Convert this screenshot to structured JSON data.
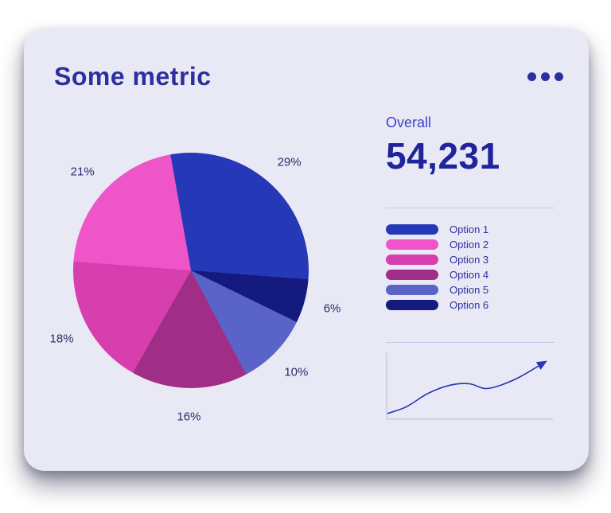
{
  "card": {
    "title": "Some metric",
    "menu_icon": "ellipsis-icon"
  },
  "overall": {
    "label": "Overall",
    "value": "54,231"
  },
  "colors": {
    "card_bg": "#e9e9f6",
    "title": "#2c2f9e",
    "overall_label": "#3c41c8",
    "overall_value": "#20249a",
    "pie_label": "#272b6b",
    "legend_label": "#2c2f9e",
    "divider": "#c3c7e6",
    "spark_axis": "#b8bcdc",
    "spark_line": "#2438b8"
  },
  "chart_data": [
    {
      "type": "pie",
      "title": "Some metric",
      "start_angle_deg": -10,
      "direction": "clockwise",
      "slices": [
        {
          "label": "Option 1",
          "value": 29,
          "pct_label": "29%",
          "color": "#2438b8"
        },
        {
          "label": "Option 6",
          "value": 6,
          "pct_label": "6%",
          "color": "#141a7e"
        },
        {
          "label": "Option 5",
          "value": 10,
          "pct_label": "10%",
          "color": "#5a63c8"
        },
        {
          "label": "Option 4",
          "value": 16,
          "pct_label": "16%",
          "color": "#a02e86"
        },
        {
          "label": "Option 3",
          "value": 18,
          "pct_label": "18%",
          "color": "#d83fae"
        },
        {
          "label": "Option 2",
          "value": 21,
          "pct_label": "21%",
          "color": "#ee55c8"
        }
      ],
      "legend": [
        {
          "label": "Option 1",
          "color": "#2438b8"
        },
        {
          "label": "Option 2",
          "color": "#ee55c8"
        },
        {
          "label": "Option 3",
          "color": "#d83fae"
        },
        {
          "label": "Option 4",
          "color": "#a02e86"
        },
        {
          "label": "Option 5",
          "color": "#5a63c8"
        },
        {
          "label": "Option 6",
          "color": "#141a7e"
        }
      ],
      "legend_position": "right"
    },
    {
      "type": "line",
      "title": "",
      "x": [
        0,
        12,
        26,
        40,
        52,
        62,
        72,
        84,
        100
      ],
      "y": [
        6,
        16,
        36,
        48,
        50,
        43,
        48,
        60,
        82
      ],
      "xlim": [
        0,
        100
      ],
      "ylim": [
        0,
        100
      ],
      "axes": "left-bottom",
      "grid": false,
      "arrow_end": true
    }
  ]
}
